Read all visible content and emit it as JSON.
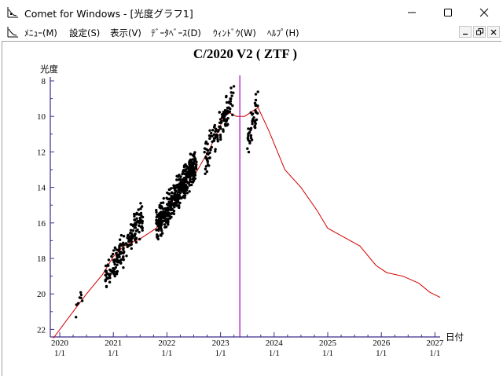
{
  "window": {
    "title": "Comet for Windows - [光度グラフ1]",
    "icons": {
      "app": "chart-app-icon",
      "minimize": "minimize-icon",
      "maximize": "maximize-icon",
      "close": "close-icon"
    }
  },
  "menubar": {
    "items": [
      {
        "label": "ﾒﾆｭｰ(M)"
      },
      {
        "label": "設定(S)"
      },
      {
        "label": "表示(V)"
      },
      {
        "label": "ﾃﾞｰﾀﾍﾞｰｽ(D)"
      },
      {
        "label": "ｳｨﾝﾄﾞｳ(W)"
      },
      {
        "label": "ﾍﾙﾌﾟ(H)"
      }
    ]
  },
  "colors": {
    "axis": "#3c2a8c",
    "curve": "#d40000",
    "marker": "#a800c8",
    "points": "#000000"
  },
  "chart_data": {
    "type": "scatter",
    "title": "C/2020 V2 ( ZTF )",
    "ylabel": "光度",
    "xlabel": "日付",
    "y_inverted": true,
    "ylim": [
      22.5,
      8
    ],
    "xlim": [
      2019.85,
      2027.15
    ],
    "yticks": [
      "8",
      "10",
      "12",
      "14",
      "16",
      "18",
      "20",
      "22"
    ],
    "xticks": [
      {
        "year": "2020",
        "day": "1/1"
      },
      {
        "year": "2021",
        "day": "1/1"
      },
      {
        "year": "2022",
        "day": "1/1"
      },
      {
        "year": "2023",
        "day": "1/1"
      },
      {
        "year": "2024",
        "day": "1/1"
      },
      {
        "year": "2025",
        "day": "1/1"
      },
      {
        "year": "2026",
        "day": "1/1"
      },
      {
        "year": "2027",
        "day": "1/1"
      }
    ],
    "current_date_marker": 2023.36,
    "predicted_curve": {
      "x": [
        2019.88,
        2020.2,
        2020.5,
        2020.8,
        2021.0,
        2021.2,
        2021.5,
        2021.8,
        2022.0,
        2022.2,
        2022.5,
        2022.8,
        2023.0,
        2023.1,
        2023.3,
        2023.45,
        2023.55,
        2023.7,
        2023.9,
        2024.2,
        2024.5,
        2024.8,
        2025.0,
        2025.3,
        2025.6,
        2025.9,
        2026.1,
        2026.4,
        2026.7,
        2026.9,
        2027.1
      ],
      "y": [
        22.5,
        21.2,
        20.0,
        18.9,
        17.9,
        17.3,
        16.9,
        16.3,
        15.3,
        14.3,
        13.4,
        11.8,
        10.5,
        9.7,
        10.0,
        10.0,
        9.8,
        9.5,
        10.8,
        13.0,
        14.0,
        15.3,
        16.3,
        16.8,
        17.3,
        18.4,
        18.8,
        19.0,
        19.4,
        19.9,
        20.2
      ]
    },
    "observation_clusters": [
      {
        "x": [
          2020.28,
          2020.42
        ],
        "y": [
          20.8,
          20.0
        ],
        "n": 8
      },
      {
        "x": [
          2020.85,
          2021.55
        ],
        "y": [
          19.2,
          15.6
        ],
        "n": 190
      },
      {
        "x": [
          2021.8,
          2022.55
        ],
        "y": [
          16.3,
          12.6
        ],
        "n": 430
      },
      {
        "x": [
          2022.7,
          2023.25
        ],
        "y": [
          12.5,
          8.8
        ],
        "n": 120
      },
      {
        "x": [
          2023.5,
          2023.7
        ],
        "y": [
          11.2,
          9.4
        ],
        "n": 45
      }
    ]
  }
}
